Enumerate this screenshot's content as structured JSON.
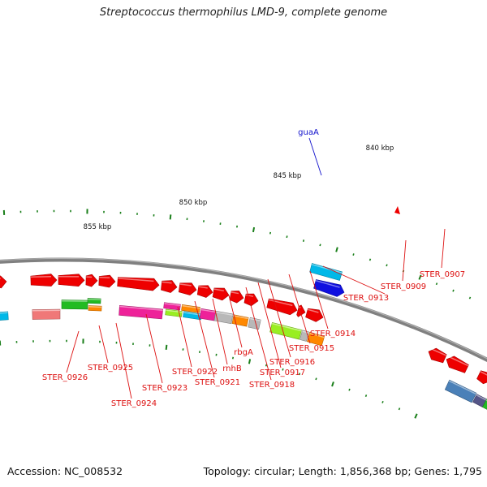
{
  "title": "Streptococcus thermophilus LMD-9, complete genome",
  "footer": {
    "accession": "Accession: NC_008532",
    "topology": "Topology: circular; Length: 1,856,368 bp; Genes: 1,795"
  },
  "colors": {
    "backbone": "#808080",
    "tick": "#1a7f1a",
    "leader_red": "#dd1111",
    "leader_blue": "#1111cc",
    "gene_red": "#ee0000",
    "gene_pink": "#ee2299",
    "gene_green": "#22bb22",
    "gene_lime": "#99ee22",
    "gene_orange": "#ff8800",
    "gene_cyan": "#00b8e8",
    "gene_grey": "#b8b8b8",
    "gene_blue": "#1010e0",
    "gene_steel": "#4a80b8",
    "gene_salmon": "#f07878"
  },
  "scale_labels": [
    {
      "text": "840 kbp"
    },
    {
      "text": "845 kbp"
    },
    {
      "text": "850 kbp"
    },
    {
      "text": "855 kbp"
    }
  ],
  "gene_labels": [
    {
      "name": "guaA",
      "color": "blue"
    },
    {
      "name": "STER_0907",
      "color": "red"
    },
    {
      "name": "STER_0909",
      "color": "red"
    },
    {
      "name": "STER_0913",
      "color": "red"
    },
    {
      "name": "STER_0914",
      "color": "red"
    },
    {
      "name": "STER_0915",
      "color": "red"
    },
    {
      "name": "STER_0916",
      "color": "red"
    },
    {
      "name": "STER_0917",
      "color": "red"
    },
    {
      "name": "STER_0918",
      "color": "red"
    },
    {
      "name": "rbgA",
      "color": "red"
    },
    {
      "name": "rnhB",
      "color": "red"
    },
    {
      "name": "STER_0921",
      "color": "red"
    },
    {
      "name": "STER_0922",
      "color": "red"
    },
    {
      "name": "STER_0923",
      "color": "red"
    },
    {
      "name": "STER_0924",
      "color": "red"
    },
    {
      "name": "STER_0925",
      "color": "red"
    },
    {
      "name": "STER_0926",
      "color": "red"
    }
  ]
}
